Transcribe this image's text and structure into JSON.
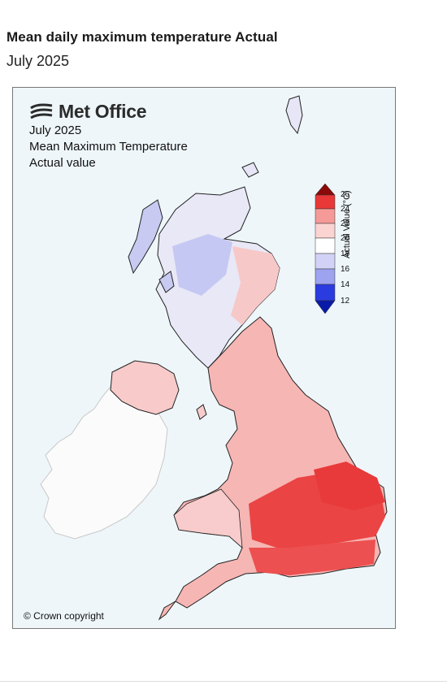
{
  "header": {
    "title": "Mean daily maximum temperature Actual",
    "subtitle": "July 2025"
  },
  "map": {
    "brand": "Met Office",
    "period": "July 2025",
    "variable": "Mean Maximum Temperature",
    "value_type": "Actual value",
    "copyright": "© Crown copyright",
    "legend": {
      "title": "Actual Value (°C)",
      "ticks": [
        "26",
        "24",
        "22",
        "20",
        "18",
        "16",
        "14",
        "12"
      ],
      "colors": {
        "c26": "#8b0a0a",
        "c24": "#e83838",
        "c22": "#f59a98",
        "c20": "#fbd4d2",
        "c18": "#ffffff",
        "c16": "#d2d2f6",
        "c14": "#9da3ef",
        "c12": "#2a3be0",
        "below": "#0a1aa8"
      }
    }
  }
}
